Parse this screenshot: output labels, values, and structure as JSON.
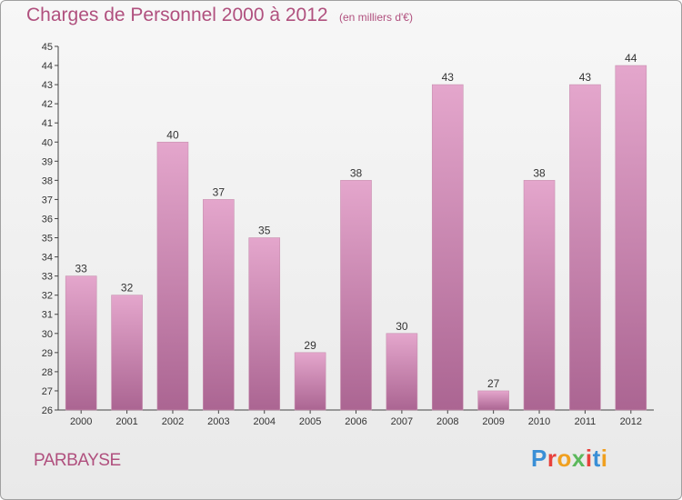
{
  "header": {
    "title": "Charges de Personnel 2000 à 2012",
    "subtitle": "(en milliers d'€)"
  },
  "commune": "PARBAYSE",
  "logo": {
    "text": "Proxiti",
    "letter_colors": [
      "#3a8fd6",
      "#e8413c",
      "#f0a020",
      "#5cb85c",
      "#e8413c",
      "#3a8fd6",
      "#f0a020"
    ]
  },
  "colors": {
    "bar_top": "#e4a6cc",
    "bar_bottom": "#ab6592",
    "title": "#b0507e",
    "axis": "#444444"
  },
  "chart_data": {
    "type": "bar",
    "title": "Charges de Personnel 2000 à 2012",
    "categories": [
      "2000",
      "2001",
      "2002",
      "2003",
      "2004",
      "2005",
      "2006",
      "2007",
      "2008",
      "2009",
      "2010",
      "2011",
      "2012"
    ],
    "values": [
      33,
      32,
      40,
      37,
      35,
      29,
      38,
      30,
      43,
      27,
      38,
      43,
      44
    ],
    "ylim": [
      26,
      45
    ],
    "yticks": [
      26,
      27,
      28,
      29,
      30,
      31,
      32,
      33,
      34,
      35,
      36,
      37,
      38,
      39,
      40,
      41,
      42,
      43,
      44,
      45
    ],
    "grid": false,
    "data_labels": true
  }
}
